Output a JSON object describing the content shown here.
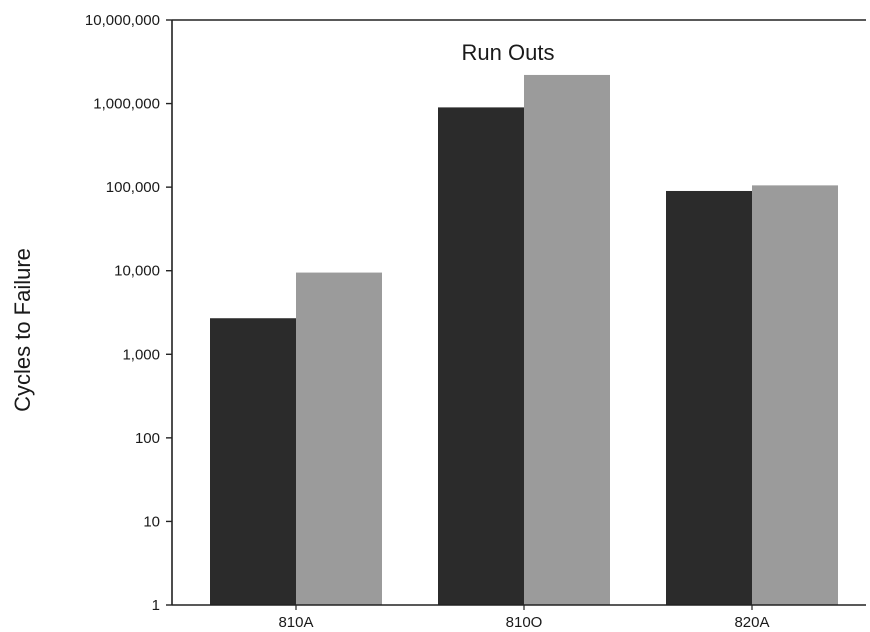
{
  "chart_data": {
    "type": "bar",
    "scale": "log",
    "grid": false,
    "legend": "none",
    "title": "",
    "xlabel": "",
    "ylabel": "Cycles to Failure",
    "ylim": [
      1,
      10000000
    ],
    "yticks": [
      1,
      10,
      100,
      1000,
      10000,
      100000,
      1000000,
      10000000
    ],
    "ytick_labels": [
      "1",
      "10",
      "100",
      "1,000",
      "10,000",
      "100,000",
      "1,000,000",
      "10,000,000"
    ],
    "categories": [
      "810A",
      "810O",
      "820A"
    ],
    "series": [
      {
        "values": [
          2700,
          900000,
          90000
        ],
        "color": "#2b2b2b"
      },
      {
        "values": [
          9500,
          2200000,
          105000
        ],
        "color": "#9b9b9b"
      }
    ],
    "annotations": [
      {
        "text": "Run Outs",
        "category": "810O"
      }
    ]
  }
}
